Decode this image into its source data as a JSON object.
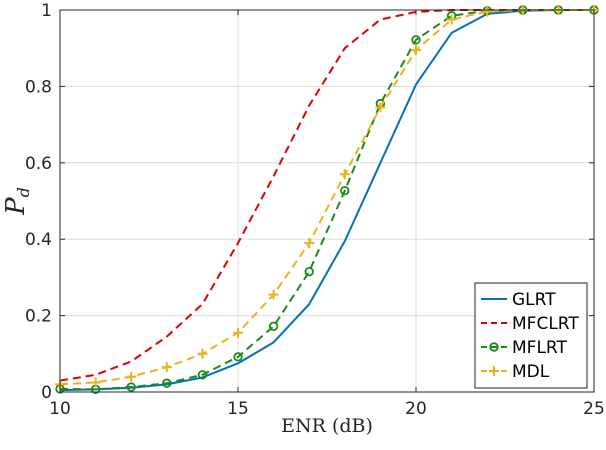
{
  "chart_data": {
    "type": "line",
    "title": "",
    "xlabel": "ENR (dB)",
    "ylabel": "P_d",
    "ylabel_main": "P",
    "ylabel_sub": "d",
    "xlim": [
      10,
      25
    ],
    "ylim": [
      0,
      1
    ],
    "xticks": [
      10,
      15,
      20,
      25
    ],
    "yticks": [
      0,
      0.2,
      0.4,
      0.6,
      0.8,
      1
    ],
    "xtick_labels": [
      "10",
      "15",
      "20",
      "25"
    ],
    "ytick_labels": [
      "0",
      "0.2",
      "0.4",
      "0.6",
      "0.8",
      "1"
    ],
    "grid": true,
    "legend_position": "bottom-right",
    "x": [
      10,
      11,
      12,
      13,
      14,
      15,
      16,
      17,
      18,
      19,
      20,
      21,
      22,
      23,
      24,
      25
    ],
    "series": [
      {
        "name": "GLRT",
        "color": "#0072BD",
        "line_style": "solid",
        "marker": "none",
        "values": [
          0.005,
          0.007,
          0.011,
          0.02,
          0.038,
          0.075,
          0.13,
          0.23,
          0.395,
          0.6,
          0.805,
          0.94,
          0.99,
          0.998,
          1.0,
          1.0
        ]
      },
      {
        "name": "MFCLRT",
        "color": "#E00000",
        "line_style": "dashed",
        "marker": "none",
        "values": [
          0.03,
          0.045,
          0.08,
          0.145,
          0.23,
          0.39,
          0.565,
          0.75,
          0.9,
          0.975,
          0.995,
          1.0,
          1.0,
          1.0,
          1.0,
          1.0
        ]
      },
      {
        "name": "MFLRT",
        "color": "#1B8A1B",
        "line_style": "dashed",
        "marker": "circle",
        "values": [
          0.008,
          0.007,
          0.013,
          0.023,
          0.045,
          0.092,
          0.172,
          0.315,
          0.527,
          0.755,
          0.922,
          0.985,
          0.998,
          1.0,
          1.0,
          1.0
        ]
      },
      {
        "name": "MDL",
        "color": "#EDB120",
        "line_style": "dashed",
        "marker": "plus",
        "values": [
          0.02,
          0.025,
          0.04,
          0.065,
          0.1,
          0.155,
          0.255,
          0.39,
          0.57,
          0.745,
          0.895,
          0.975,
          0.996,
          1.0,
          1.0,
          1.0
        ]
      }
    ]
  }
}
